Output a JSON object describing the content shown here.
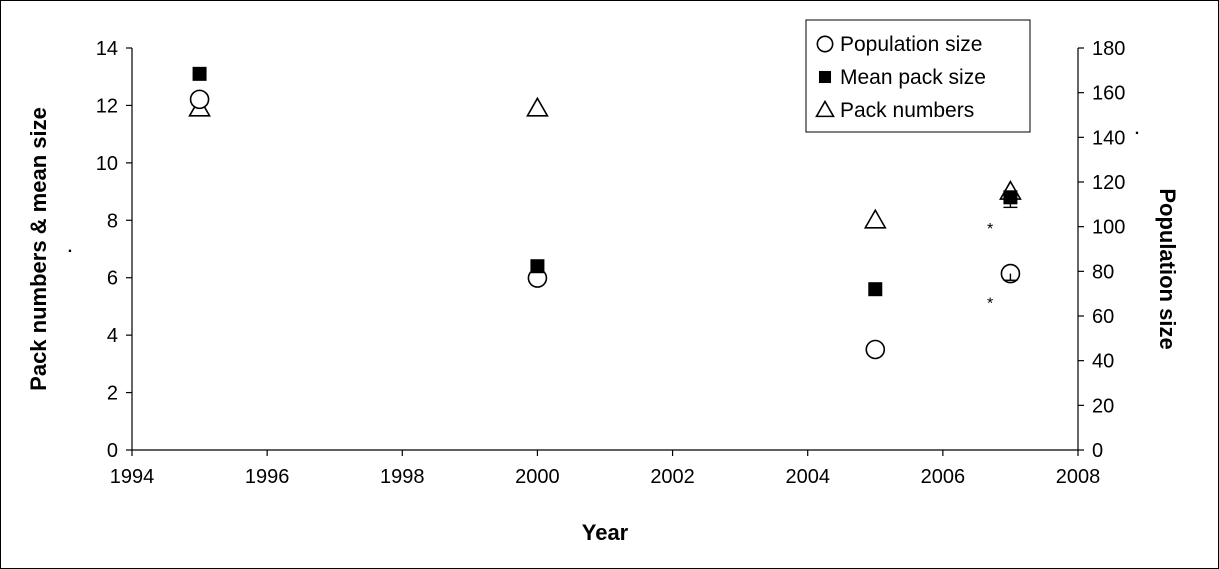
{
  "chart_data": {
    "type": "scatter",
    "xlabel": "Year",
    "ylabel_left": "Pack numbers & mean size",
    "ylabel_right": "Population size",
    "xlim": [
      1994,
      2008
    ],
    "xticks": [
      1994,
      1996,
      1998,
      2000,
      2002,
      2004,
      2006,
      2008
    ],
    "ylim_left": [
      0,
      14
    ],
    "yticks_left": [
      0,
      2,
      4,
      6,
      8,
      10,
      12,
      14
    ],
    "ylim_right": [
      0,
      180
    ],
    "yticks_right": [
      0,
      20,
      40,
      60,
      80,
      100,
      120,
      140,
      160,
      180
    ],
    "grid": false,
    "legend_position": "top-right",
    "series": [
      {
        "name": "Population size",
        "axis": "right",
        "marker": "open-circle",
        "x": [
          1995,
          2000,
          2005,
          2007
        ],
        "y": [
          157,
          77,
          45,
          79
        ]
      },
      {
        "name": "Mean pack size",
        "axis": "left",
        "marker": "filled-square",
        "x": [
          1995,
          2000,
          2005,
          2007
        ],
        "y": [
          13.1,
          6.4,
          5.6,
          8.8
        ]
      },
      {
        "name": "Pack numbers",
        "axis": "left",
        "marker": "open-triangle",
        "x": [
          1995,
          2000,
          2005,
          2007
        ],
        "y": [
          11.9,
          11.9,
          8.0,
          9.0
        ]
      }
    ],
    "annotations": [
      {
        "text": "*",
        "x": 2006.7,
        "y_left": 7.8
      },
      {
        "text": "*",
        "x": 2006.7,
        "y_left": 5.2
      },
      {
        "text": ".",
        "axis_note": "left-axis-title"
      },
      {
        "text": ".",
        "axis_note": "right-axis-title"
      }
    ]
  }
}
